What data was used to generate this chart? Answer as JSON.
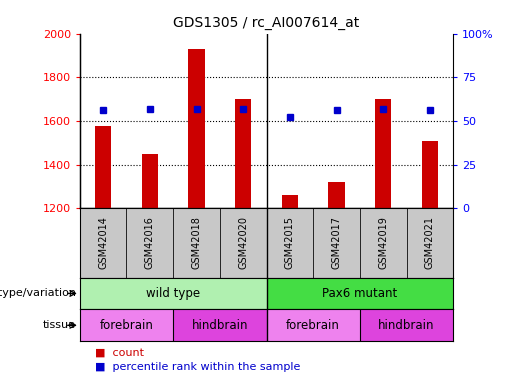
{
  "title": "GDS1305 / rc_AI007614_at",
  "samples": [
    "GSM42014",
    "GSM42016",
    "GSM42018",
    "GSM42020",
    "GSM42015",
    "GSM42017",
    "GSM42019",
    "GSM42021"
  ],
  "counts": [
    1575,
    1450,
    1930,
    1700,
    1262,
    1320,
    1700,
    1510
  ],
  "percentile_ranks": [
    56,
    57,
    57,
    57,
    52,
    56,
    57,
    56
  ],
  "ylim_left": [
    1200,
    2000
  ],
  "ylim_right": [
    0,
    100
  ],
  "right_ticks": [
    0,
    25,
    50,
    75,
    100
  ],
  "right_tick_labels": [
    "0",
    "25",
    "50",
    "75",
    "100%"
  ],
  "left_ticks": [
    1200,
    1400,
    1600,
    1800,
    2000
  ],
  "bar_color": "#cc0000",
  "dot_color": "#0000cc",
  "genotype_groups": [
    {
      "label": "wild type",
      "start": 0,
      "end": 4,
      "color": "#b0f0b0"
    },
    {
      "label": "Pax6 mutant",
      "start": 4,
      "end": 8,
      "color": "#44dd44"
    }
  ],
  "tissue_groups": [
    {
      "label": "forebrain",
      "start": 0,
      "end": 2,
      "color": "#ee82ee"
    },
    {
      "label": "hindbrain",
      "start": 2,
      "end": 4,
      "color": "#dd44dd"
    },
    {
      "label": "forebrain",
      "start": 4,
      "end": 6,
      "color": "#ee82ee"
    },
    {
      "label": "hindbrain",
      "start": 6,
      "end": 8,
      "color": "#dd44dd"
    }
  ],
  "legend_count_label": "count",
  "legend_pct_label": "percentile rank within the sample",
  "genotype_label": "genotype/variation",
  "tissue_label": "tissue",
  "sample_bg": "#c8c8c8"
}
